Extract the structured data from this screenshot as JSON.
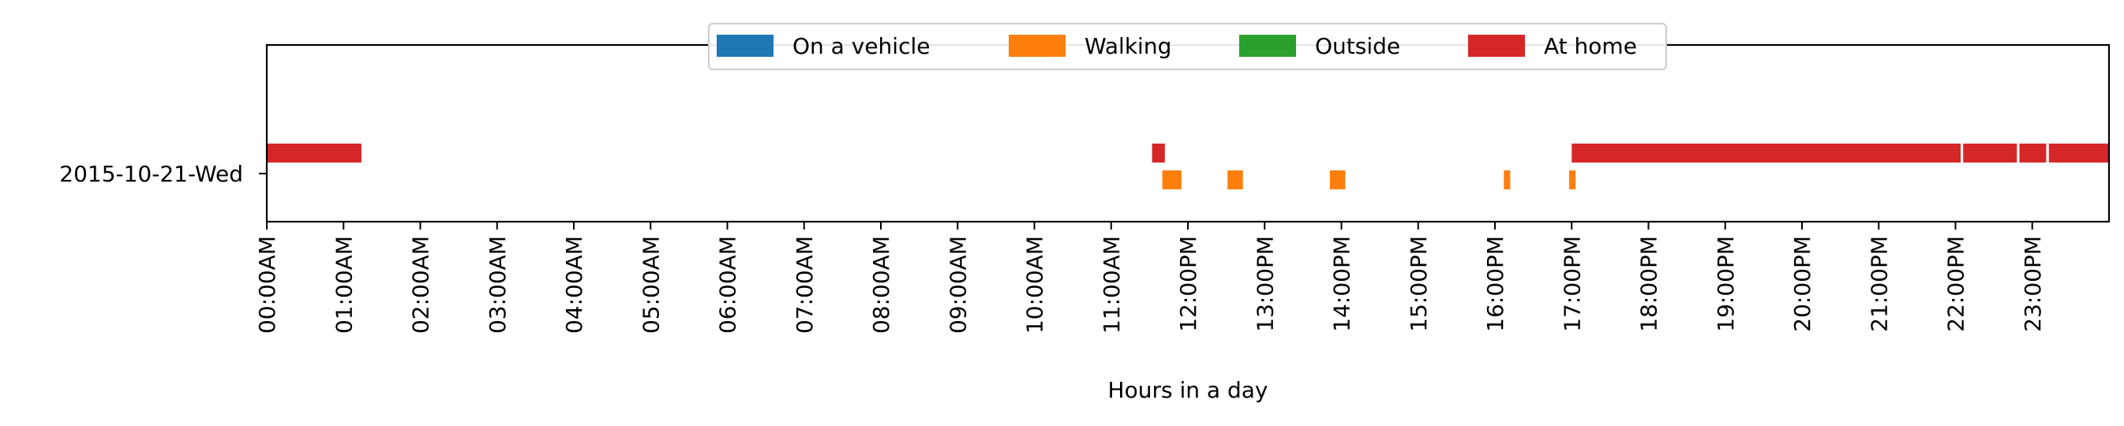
{
  "chart_data": {
    "type": "timeline",
    "xlabel": "Hours in a day",
    "ylabel": "",
    "xlim_hours": [
      0,
      24
    ],
    "x_tick_labels": [
      "00:00AM",
      "01:00AM",
      "02:00AM",
      "03:00AM",
      "04:00AM",
      "05:00AM",
      "06:00AM",
      "07:00AM",
      "08:00AM",
      "09:00AM",
      "10:00AM",
      "11:00AM",
      "12:00PM",
      "13:00PM",
      "14:00PM",
      "15:00PM",
      "16:00PM",
      "17:00PM",
      "18:00PM",
      "19:00PM",
      "20:00PM",
      "21:00PM",
      "22:00PM",
      "23:00PM"
    ],
    "days": [
      "2015-10-21-Wed"
    ],
    "legend": {
      "placement": "top-center",
      "entries": [
        {
          "name": "On a vehicle",
          "color": "#1f77b4"
        },
        {
          "name": "Walking",
          "color": "#ff7f0e"
        },
        {
          "name": "Outside",
          "color": "#2ca02c"
        },
        {
          "name": "At home",
          "color": "#d62728"
        }
      ]
    },
    "series": [
      {
        "name": "On a vehicle",
        "row": 0,
        "intervals": []
      },
      {
        "name": "Walking",
        "row": 1,
        "intervals": [
          [
            "11:40",
            "11:55"
          ],
          [
            "12:31",
            "12:43"
          ],
          [
            "13:51",
            "14:03"
          ],
          [
            "16:07",
            "16:12"
          ],
          [
            "16:58",
            "17:03"
          ]
        ]
      },
      {
        "name": "Outside",
        "row": 2,
        "intervals": []
      },
      {
        "name": "At home",
        "row": 3,
        "intervals": [
          [
            "00:00",
            "01:14"
          ],
          [
            "11:32",
            "11:42"
          ],
          [
            "17:00",
            "22:04"
          ],
          [
            "22:06",
            "22:48"
          ],
          [
            "22:50",
            "23:11"
          ],
          [
            "23:13",
            "24:00"
          ]
        ]
      }
    ]
  }
}
